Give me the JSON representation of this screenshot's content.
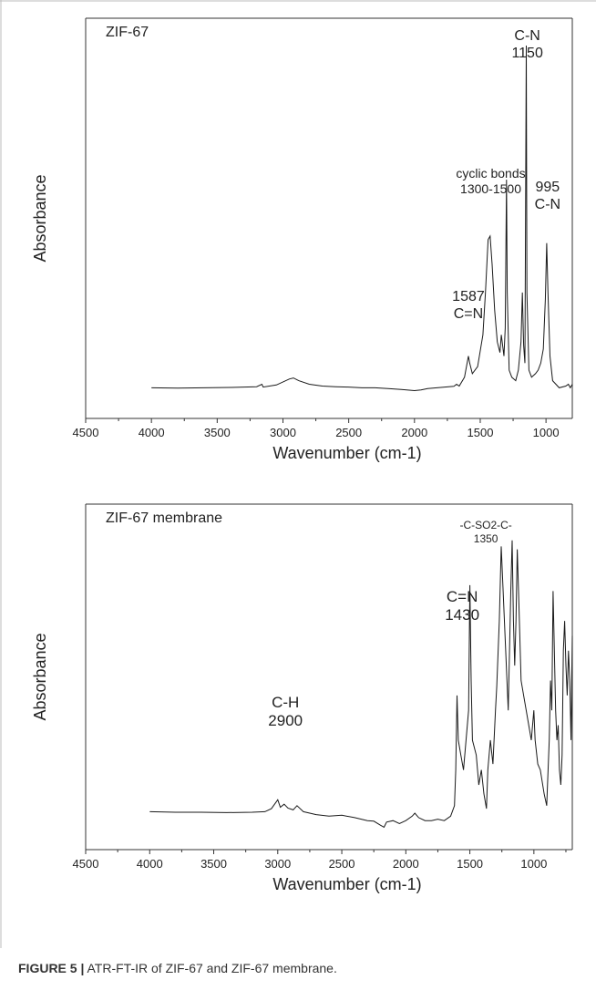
{
  "caption": {
    "label": "FIGURE 5 |",
    "text": " ATR-FT-IR of ZIF-67 and ZIF-67 membrane."
  },
  "colors": {
    "line": "#1a1a1a",
    "axis": "#333333",
    "frame_border": "#bbbbbb"
  },
  "chart_data": [
    {
      "type": "line",
      "title": "ZIF-67",
      "xlabel": "Wavenumber (cm-1)",
      "ylabel": "Absorbance",
      "xlim": [
        4500,
        800
      ],
      "ylim": [
        0,
        1
      ],
      "x_reversed": true,
      "xticks": [
        4500,
        4000,
        3500,
        3000,
        2500,
        2000,
        1500,
        1000
      ],
      "yticks_shown": false,
      "annotations": [
        {
          "lines": [
            "C-N",
            "1150"
          ],
          "x": 1150
        },
        {
          "lines": [
            "cyclic bonds",
            "1300-1500"
          ],
          "x": 1300
        },
        {
          "lines": [
            "995",
            "C-N"
          ],
          "x": 995
        },
        {
          "lines": [
            "1587",
            "C=N"
          ],
          "x": 1587
        }
      ],
      "series": [
        {
          "points": [
            [
              4000,
              0.03
            ],
            [
              3800,
              0.029
            ],
            [
              3600,
              0.03
            ],
            [
              3400,
              0.031
            ],
            [
              3200,
              0.033
            ],
            [
              3160,
              0.04
            ],
            [
              3150,
              0.032
            ],
            [
              3050,
              0.038
            ],
            [
              2950,
              0.055
            ],
            [
              2920,
              0.058
            ],
            [
              2880,
              0.05
            ],
            [
              2800,
              0.04
            ],
            [
              2700,
              0.035
            ],
            [
              2600,
              0.033
            ],
            [
              2500,
              0.032
            ],
            [
              2400,
              0.03
            ],
            [
              2300,
              0.03
            ],
            [
              2200,
              0.028
            ],
            [
              2100,
              0.025
            ],
            [
              2000,
              0.022
            ],
            [
              1950,
              0.024
            ],
            [
              1900,
              0.028
            ],
            [
              1800,
              0.031
            ],
            [
              1700,
              0.034
            ],
            [
              1680,
              0.04
            ],
            [
              1660,
              0.035
            ],
            [
              1620,
              0.06
            ],
            [
              1590,
              0.12
            ],
            [
              1580,
              0.1
            ],
            [
              1560,
              0.07
            ],
            [
              1520,
              0.09
            ],
            [
              1480,
              0.18
            ],
            [
              1460,
              0.3
            ],
            [
              1440,
              0.45
            ],
            [
              1425,
              0.46
            ],
            [
              1410,
              0.38
            ],
            [
              1390,
              0.25
            ],
            [
              1370,
              0.16
            ],
            [
              1350,
              0.13
            ],
            [
              1340,
              0.18
            ],
            [
              1320,
              0.12
            ],
            [
              1310,
              0.2
            ],
            [
              1300,
              0.62
            ],
            [
              1295,
              0.3
            ],
            [
              1280,
              0.08
            ],
            [
              1260,
              0.06
            ],
            [
              1230,
              0.05
            ],
            [
              1210,
              0.08
            ],
            [
              1190,
              0.16
            ],
            [
              1180,
              0.3
            ],
            [
              1170,
              0.15
            ],
            [
              1160,
              0.1
            ],
            [
              1150,
              1.0
            ],
            [
              1145,
              0.3
            ],
            [
              1130,
              0.08
            ],
            [
              1110,
              0.06
            ],
            [
              1080,
              0.07
            ],
            [
              1060,
              0.08
            ],
            [
              1040,
              0.1
            ],
            [
              1020,
              0.14
            ],
            [
              1005,
              0.28
            ],
            [
              995,
              0.44
            ],
            [
              985,
              0.3
            ],
            [
              970,
              0.12
            ],
            [
              950,
              0.05
            ],
            [
              900,
              0.03
            ],
            [
              850,
              0.035
            ],
            [
              830,
              0.04
            ],
            [
              815,
              0.03
            ],
            [
              800,
              0.04
            ]
          ]
        }
      ]
    },
    {
      "type": "line",
      "title": "ZIF-67 membrane",
      "xlabel": "Wavenumber (cm-1)",
      "ylabel": "Absorbance",
      "xlim": [
        4500,
        700
      ],
      "ylim": [
        0,
        1
      ],
      "x_reversed": true,
      "xticks": [
        4500,
        4000,
        3500,
        3000,
        2500,
        2000,
        1500,
        1000
      ],
      "yticks_shown": false,
      "annotations": [
        {
          "lines": [
            "-C-SO2-C-",
            "1350"
          ],
          "x": 1350
        },
        {
          "lines": [
            "C=N",
            "1430"
          ],
          "x": 1430
        },
        {
          "lines": [
            "C-H",
            "2900"
          ],
          "x": 2900
        }
      ],
      "series": [
        {
          "points": [
            [
              4000,
              0.06
            ],
            [
              3800,
              0.058
            ],
            [
              3600,
              0.058
            ],
            [
              3400,
              0.057
            ],
            [
              3200,
              0.058
            ],
            [
              3100,
              0.06
            ],
            [
              3050,
              0.07
            ],
            [
              3000,
              0.1
            ],
            [
              2980,
              0.075
            ],
            [
              2950,
              0.085
            ],
            [
              2920,
              0.072
            ],
            [
              2880,
              0.066
            ],
            [
              2850,
              0.08
            ],
            [
              2800,
              0.06
            ],
            [
              2700,
              0.05
            ],
            [
              2600,
              0.045
            ],
            [
              2500,
              0.048
            ],
            [
              2400,
              0.04
            ],
            [
              2300,
              0.03
            ],
            [
              2250,
              0.028
            ],
            [
              2200,
              0.015
            ],
            [
              2170,
              0.008
            ],
            [
              2150,
              0.025
            ],
            [
              2100,
              0.03
            ],
            [
              2050,
              0.02
            ],
            [
              2000,
              0.03
            ],
            [
              1950,
              0.045
            ],
            [
              1930,
              0.055
            ],
            [
              1900,
              0.04
            ],
            [
              1850,
              0.03
            ],
            [
              1800,
              0.03
            ],
            [
              1750,
              0.035
            ],
            [
              1700,
              0.03
            ],
            [
              1650,
              0.045
            ],
            [
              1620,
              0.08
            ],
            [
              1610,
              0.2
            ],
            [
              1600,
              0.45
            ],
            [
              1590,
              0.3
            ],
            [
              1570,
              0.25
            ],
            [
              1550,
              0.2
            ],
            [
              1530,
              0.3
            ],
            [
              1510,
              0.4
            ],
            [
              1500,
              0.82
            ],
            [
              1490,
              0.5
            ],
            [
              1480,
              0.3
            ],
            [
              1450,
              0.25
            ],
            [
              1430,
              0.15
            ],
            [
              1410,
              0.2
            ],
            [
              1390,
              0.12
            ],
            [
              1370,
              0.07
            ],
            [
              1360,
              0.2
            ],
            [
              1340,
              0.3
            ],
            [
              1320,
              0.22
            ],
            [
              1300,
              0.4
            ],
            [
              1290,
              0.48
            ],
            [
              1270,
              0.7
            ],
            [
              1255,
              0.95
            ],
            [
              1240,
              0.8
            ],
            [
              1220,
              0.6
            ],
            [
              1200,
              0.4
            ],
            [
              1190,
              0.6
            ],
            [
              1180,
              0.8
            ],
            [
              1170,
              0.97
            ],
            [
              1160,
              0.7
            ],
            [
              1150,
              0.55
            ],
            [
              1140,
              0.7
            ],
            [
              1130,
              0.94
            ],
            [
              1120,
              0.8
            ],
            [
              1100,
              0.5
            ],
            [
              1080,
              0.45
            ],
            [
              1060,
              0.4
            ],
            [
              1040,
              0.35
            ],
            [
              1020,
              0.3
            ],
            [
              1000,
              0.4
            ],
            [
              990,
              0.3
            ],
            [
              970,
              0.22
            ],
            [
              950,
              0.2
            ],
            [
              920,
              0.12
            ],
            [
              900,
              0.08
            ],
            [
              880,
              0.3
            ],
            [
              870,
              0.5
            ],
            [
              860,
              0.4
            ],
            [
              850,
              0.8
            ],
            [
              840,
              0.6
            ],
            [
              830,
              0.4
            ],
            [
              820,
              0.3
            ],
            [
              810,
              0.35
            ],
            [
              800,
              0.2
            ],
            [
              790,
              0.15
            ],
            [
              780,
              0.25
            ],
            [
              770,
              0.6
            ],
            [
              760,
              0.7
            ],
            [
              750,
              0.55
            ],
            [
              740,
              0.45
            ],
            [
              730,
              0.6
            ],
            [
              720,
              0.5
            ],
            [
              710,
              0.3
            ],
            [
              700,
              0.65
            ]
          ]
        }
      ]
    }
  ]
}
